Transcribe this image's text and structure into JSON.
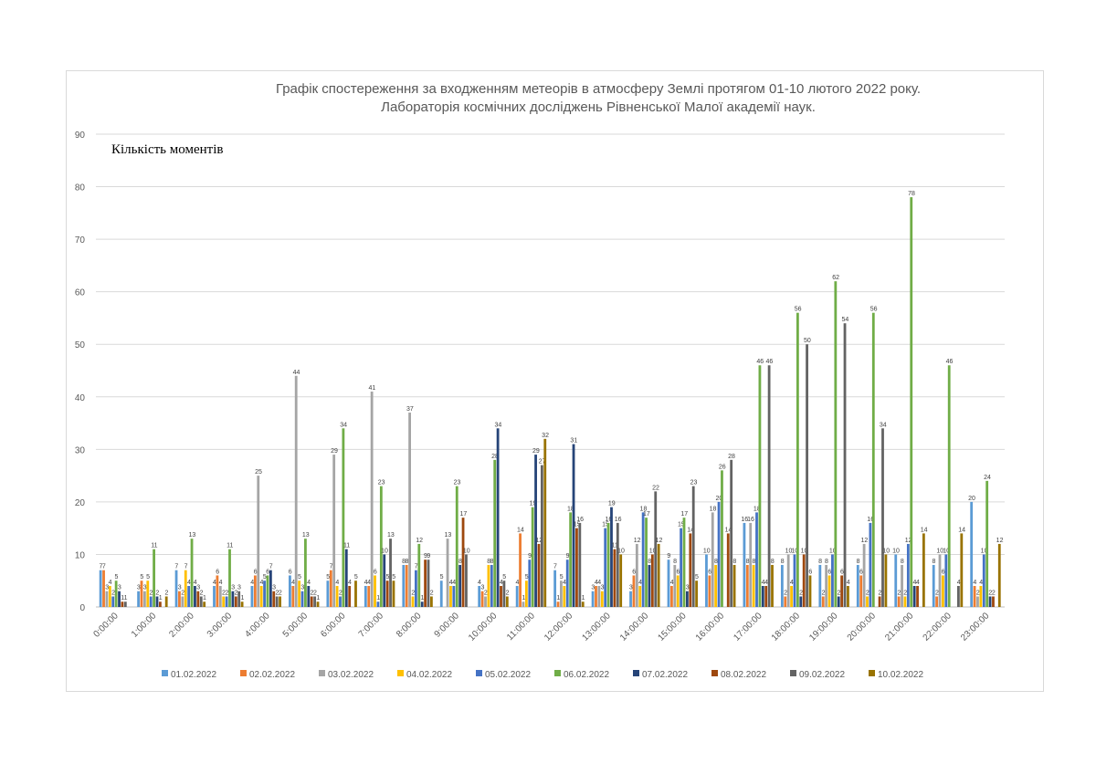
{
  "chart_data": {
    "type": "bar",
    "title": [
      "Графік спостереження за входженням метеорів в атмосферу Землі протягом 01-10 лютого 2022 року.",
      "Лабораторія космічних досліджень Рівненської Малої академії наук."
    ],
    "ylabel": "Кількість моментів",
    "xlabel": "",
    "ylim": [
      0,
      90
    ],
    "yticks": [
      0,
      10,
      20,
      30,
      40,
      50,
      60,
      70,
      80,
      90
    ],
    "grid": true,
    "legend": "bottom",
    "categories": [
      "0:00:00",
      "1:00:00",
      "2:00:00",
      "3:00:00",
      "4:00:00",
      "5:00:00",
      "6:00:00",
      "7:00:00",
      "8:00:00",
      "9:00:00",
      "10:00:00",
      "11:00:00",
      "12:00:00",
      "13:00:00",
      "14:00:00",
      "15:00:00",
      "16:00:00",
      "17:00:00",
      "18:00:00",
      "19:00:00",
      "20:00:00",
      "21:00:00",
      "22:00:00",
      "23:00:00"
    ],
    "series": [
      {
        "name": "01.02.2022",
        "color": "#5b9bd5",
        "values": [
          7,
          3,
          7,
          4,
          4,
          6,
          5,
          4,
          8,
          5,
          4,
          4,
          7,
          3,
          3,
          9,
          10,
          16,
          8,
          8,
          8,
          10,
          8,
          20
        ]
      },
      {
        "name": "02.02.2022",
        "color": "#ed7d31",
        "values": [
          7,
          5,
          3,
          6,
          6,
          4,
          7,
          4,
          8,
          0,
          3,
          14,
          1,
          4,
          6,
          4,
          6,
          8,
          2,
          2,
          6,
          2,
          2,
          4
        ]
      },
      {
        "name": "03.02.2022",
        "color": "#a5a5a5",
        "values": [
          3,
          3,
          2,
          4,
          25,
          44,
          29,
          41,
          37,
          13,
          2,
          1,
          5,
          4,
          12,
          8,
          18,
          16,
          10,
          8,
          12,
          8,
          10,
          2
        ]
      },
      {
        "name": "04.02.2022",
        "color": "#ffc000",
        "values": [
          4,
          5,
          7,
          2,
          4,
          5,
          4,
          6,
          2,
          4,
          8,
          5,
          4,
          3,
          4,
          6,
          8,
          8,
          4,
          6,
          2,
          2,
          6,
          4
        ]
      },
      {
        "name": "05.02.2022",
        "color": "#4472c4",
        "values": [
          2,
          2,
          4,
          2,
          5,
          3,
          2,
          1,
          7,
          4,
          8,
          9,
          9,
          15,
          18,
          15,
          20,
          18,
          10,
          10,
          16,
          12,
          10,
          10
        ]
      },
      {
        "name": "06.02.2022",
        "color": "#70ad47",
        "values": [
          5,
          11,
          13,
          11,
          6,
          13,
          34,
          23,
          12,
          23,
          28,
          19,
          18,
          16,
          17,
          17,
          26,
          46,
          56,
          62,
          56,
          78,
          46,
          24
        ]
      },
      {
        "name": "07.02.2022",
        "color": "#264478",
        "values": [
          3,
          2,
          4,
          3,
          7,
          4,
          11,
          10,
          1,
          8,
          34,
          29,
          31,
          19,
          8,
          3,
          0,
          4,
          2,
          2,
          0,
          4,
          0,
          2
        ]
      },
      {
        "name": "08.02.2022",
        "color": "#9e480e",
        "values": [
          1,
          1,
          3,
          2,
          3,
          2,
          4,
          5,
          9,
          17,
          4,
          12,
          15,
          11,
          10,
          14,
          14,
          4,
          10,
          6,
          2,
          4,
          0,
          2
        ]
      },
      {
        "name": "09.02.2022",
        "color": "#636363",
        "values": [
          1,
          0,
          2,
          3,
          2,
          2,
          0,
          13,
          9,
          10,
          5,
          27,
          16,
          16,
          22,
          23,
          28,
          46,
          50,
          54,
          34,
          0,
          4,
          0
        ]
      },
      {
        "name": "10.02.2022",
        "color": "#997300",
        "values": [
          0,
          2,
          1,
          1,
          2,
          1,
          5,
          5,
          2,
          0,
          2,
          32,
          1,
          10,
          12,
          5,
          8,
          8,
          6,
          4,
          10,
          14,
          14,
          12
        ]
      }
    ]
  }
}
